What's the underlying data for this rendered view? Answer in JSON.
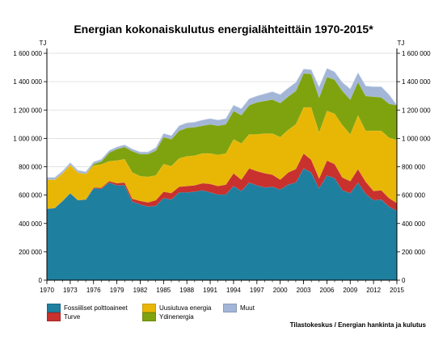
{
  "chart_data": {
    "type": "area",
    "title": "Energian kokonaiskulutus energialähteittäin 1970-2015*",
    "unit_label": "TJ",
    "ylim": [
      0,
      1600000
    ],
    "y_ticks": [
      "0",
      "200 000",
      "400 000",
      "600 000",
      "800 000",
      "1 000 000",
      "1 200 000",
      "1 400 000",
      "1 600 000"
    ],
    "y_tick_values": [
      0,
      200000,
      400000,
      600000,
      800000,
      1000000,
      1200000,
      1400000,
      1600000
    ],
    "x_ticks": [
      "1970",
      "1973",
      "1976",
      "1979",
      "1982",
      "1985",
      "1988",
      "1991",
      "1994",
      "1997",
      "2000",
      "2003",
      "2006",
      "2009",
      "2012",
      "2015"
    ],
    "x": [
      1970,
      1971,
      1972,
      1973,
      1974,
      1975,
      1976,
      1977,
      1978,
      1979,
      1980,
      1981,
      1982,
      1983,
      1984,
      1985,
      1986,
      1987,
      1988,
      1989,
      1990,
      1991,
      1992,
      1993,
      1994,
      1995,
      1996,
      1997,
      1998,
      1999,
      2000,
      2001,
      2002,
      2003,
      2004,
      2005,
      2006,
      2007,
      2008,
      2009,
      2010,
      2011,
      2012,
      2013,
      2014,
      2015
    ],
    "stacked": true,
    "grid": true,
    "legend_position": "bottom-left",
    "series": [
      {
        "name": "Fossiiliset polttoaineet",
        "color": "#1f7f9f",
        "values": [
          505000,
          510000,
          560000,
          615000,
          565000,
          570000,
          650000,
          645000,
          690000,
          670000,
          670000,
          555000,
          535000,
          520000,
          525000,
          580000,
          570000,
          620000,
          620000,
          625000,
          635000,
          620000,
          605000,
          605000,
          665000,
          630000,
          690000,
          670000,
          655000,
          660000,
          640000,
          675000,
          690000,
          790000,
          760000,
          650000,
          740000,
          720000,
          635000,
          615000,
          690000,
          610000,
          565000,
          570000,
          520000,
          490000
        ]
      },
      {
        "name": "Turve",
        "color": "#c8312e",
        "values": [
          0,
          0,
          0,
          0,
          0,
          0,
          5000,
          8000,
          10000,
          15000,
          20000,
          20000,
          25000,
          30000,
          40000,
          45000,
          45000,
          40000,
          45000,
          45000,
          50000,
          60000,
          60000,
          70000,
          90000,
          80000,
          100000,
          100000,
          100000,
          85000,
          70000,
          85000,
          95000,
          105000,
          90000,
          70000,
          105000,
          100000,
          90000,
          85000,
          95000,
          85000,
          65000,
          65000,
          60000,
          55000
        ]
      },
      {
        "name": "Uusiutuva energia",
        "color": "#e8b705",
        "values": [
          205000,
          200000,
          195000,
          200000,
          195000,
          180000,
          155000,
          165000,
          140000,
          160000,
          165000,
          185000,
          175000,
          180000,
          175000,
          195000,
          190000,
          200000,
          210000,
          210000,
          210000,
          215000,
          220000,
          220000,
          240000,
          255000,
          240000,
          260000,
          280000,
          290000,
          300000,
          300000,
          315000,
          325000,
          370000,
          325000,
          350000,
          355000,
          370000,
          330000,
          380000,
          360000,
          425000,
          420000,
          425000,
          445000
        ]
      },
      {
        "name": "Ydinenergia",
        "color": "#7fa30f",
        "values": [
          0,
          0,
          0,
          0,
          0,
          0,
          10000,
          20000,
          60000,
          80000,
          85000,
          150000,
          155000,
          160000,
          175000,
          190000,
          190000,
          195000,
          200000,
          200000,
          195000,
          205000,
          205000,
          205000,
          200000,
          200000,
          205000,
          225000,
          230000,
          240000,
          240000,
          235000,
          235000,
          240000,
          235000,
          245000,
          240000,
          240000,
          240000,
          245000,
          235000,
          245000,
          240000,
          235000,
          240000,
          245000
        ]
      },
      {
        "name": "Muut",
        "color": "#a4b6d7",
        "values": [
          15000,
          15000,
          15000,
          15000,
          15000,
          15000,
          15000,
          15000,
          15000,
          15000,
          15000,
          15000,
          15000,
          15000,
          20000,
          25000,
          25000,
          35000,
          35000,
          35000,
          40000,
          40000,
          40000,
          40000,
          40000,
          45000,
          45000,
          45000,
          50000,
          55000,
          60000,
          60000,
          60000,
          30000,
          30000,
          75000,
          60000,
          55000,
          60000,
          75000,
          65000,
          70000,
          70000,
          75000,
          65000,
          0
        ]
      }
    ]
  },
  "source": "Tilastokeskus / Energian hankinta ja kulutus"
}
